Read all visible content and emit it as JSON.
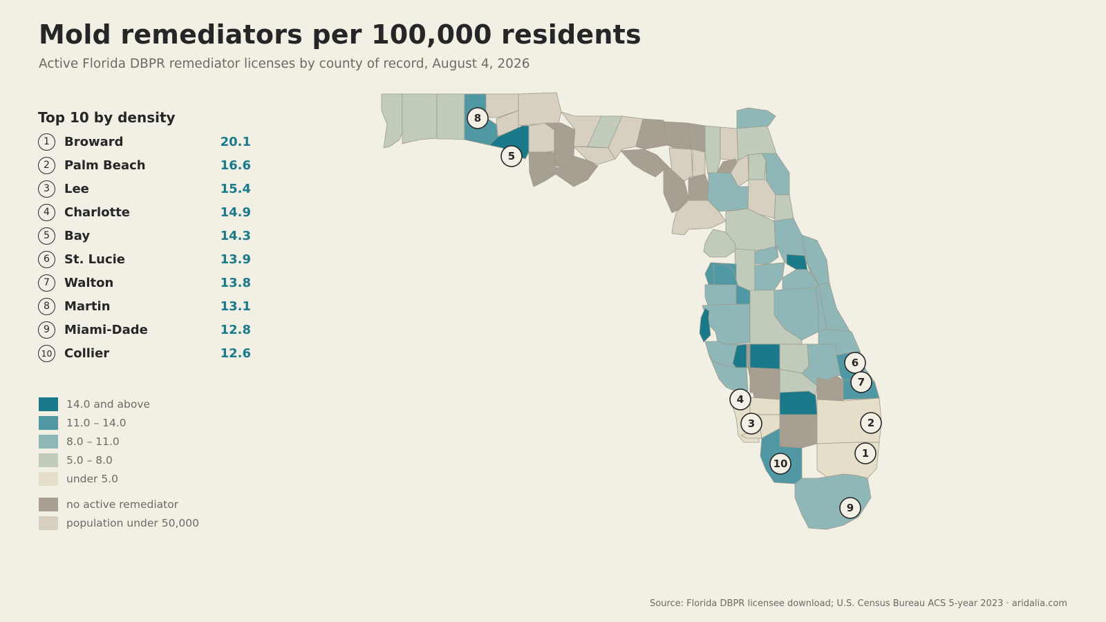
{
  "title": "Mold remediators per 100,000 residents",
  "subtitle": "Active Florida DBPR remediator licenses by county of record, August 4, 2026",
  "top10": {
    "heading": "Top 10 by density",
    "items": [
      {
        "rank": "1",
        "name": "Broward",
        "value": "20.1"
      },
      {
        "rank": "2",
        "name": "Palm Beach",
        "value": "16.6"
      },
      {
        "rank": "3",
        "name": "Lee",
        "value": "15.4"
      },
      {
        "rank": "4",
        "name": "Charlotte",
        "value": "14.9"
      },
      {
        "rank": "5",
        "name": "Bay",
        "value": "14.3"
      },
      {
        "rank": "6",
        "name": "St. Lucie",
        "value": "13.9"
      },
      {
        "rank": "7",
        "name": "Walton",
        "value": "13.8"
      },
      {
        "rank": "8",
        "name": "Martin",
        "value": "13.1"
      },
      {
        "rank": "9",
        "name": "Miami-Dade",
        "value": "12.8"
      },
      {
        "rank": "10",
        "name": "Collier",
        "value": "12.6"
      }
    ]
  },
  "legend": {
    "items": [
      {
        "label": "14.0 and above",
        "color": "#1b7a8a"
      },
      {
        "label": "11.0 – 14.0",
        "color": "#4f98a4"
      },
      {
        "label": "8.0 – 11.0",
        "color": "#8fb7b8"
      },
      {
        "label": "5.0 – 8.0",
        "color": "#c1cbbb"
      },
      {
        "label": "under 5.0",
        "color": "#e5dfca"
      },
      {
        "label": "no active remediator",
        "color": "#a69f92"
      },
      {
        "label": "population under 50,000",
        "color": "#d7d0c0"
      }
    ]
  },
  "map": {
    "markers": [
      "1",
      "2",
      "3",
      "4",
      "5",
      "6",
      "7",
      "8",
      "9",
      "10"
    ]
  },
  "source": "Source: Florida DBPR licensee download; U.S. Census Bureau ACS 5-year 2023 · aridalia.com"
}
